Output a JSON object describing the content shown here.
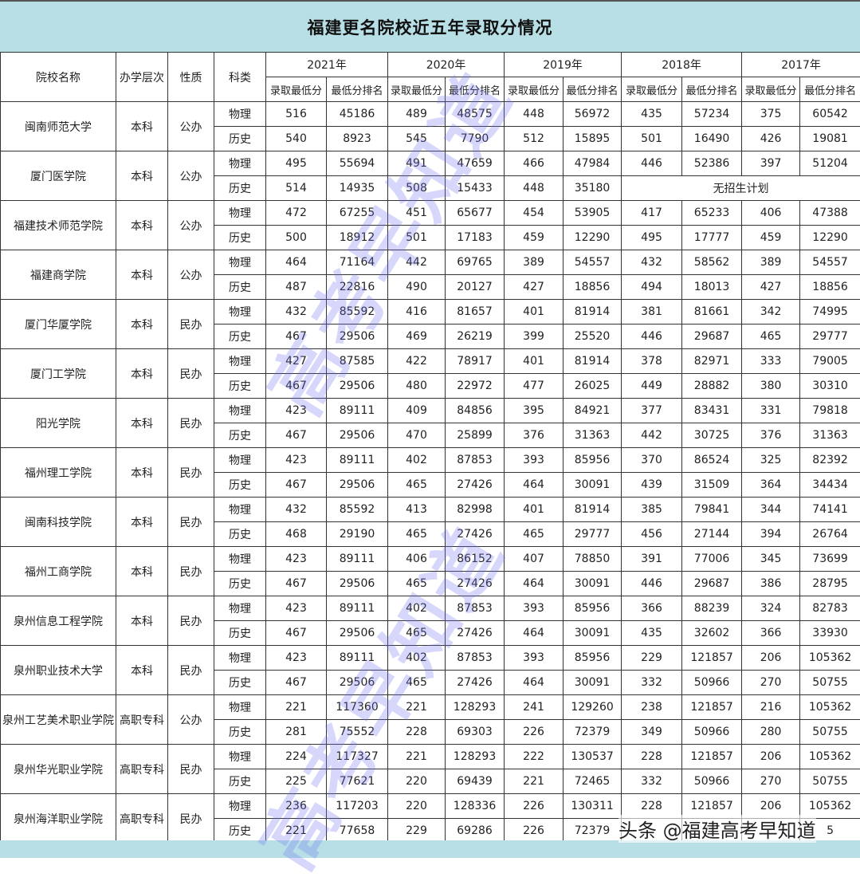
{
  "title": "福建更名院校近五年录取分情况",
  "headers": {
    "school": "院校名称",
    "level": "办学层次",
    "type": "性质",
    "subject": "科类",
    "years": [
      "2021年",
      "2020年",
      "2019年",
      "2018年",
      "2017年"
    ],
    "min_score": "录取最低分",
    "min_rank": "最低分排名"
  },
  "schools": [
    {
      "name": "闽南师范大学",
      "level": "本科",
      "type": "公办",
      "rows": [
        {
          "subject": "物理",
          "values": [
            "516",
            "45186",
            "489",
            "48575",
            "448",
            "56972",
            "435",
            "57234",
            "375",
            "60542"
          ]
        },
        {
          "subject": "历史",
          "values": [
            "540",
            "8923",
            "545",
            "7790",
            "512",
            "15895",
            "501",
            "16490",
            "426",
            "19081"
          ]
        }
      ]
    },
    {
      "name": "厦门医学院",
      "level": "本科",
      "type": "公办",
      "rows": [
        {
          "subject": "物理",
          "values": [
            "495",
            "55694",
            "491",
            "47659",
            "466",
            "47984",
            "446",
            "52386",
            "397",
            "51204"
          ]
        },
        {
          "subject": "历史",
          "values": [
            "514",
            "14935",
            "508",
            "15433",
            "448",
            "35180"
          ],
          "note": "无招生计划"
        }
      ]
    },
    {
      "name": "福建技术师范学院",
      "level": "本科",
      "type": "公办",
      "rows": [
        {
          "subject": "物理",
          "values": [
            "472",
            "67255",
            "451",
            "65677",
            "454",
            "53905",
            "417",
            "65233",
            "406",
            "47388"
          ]
        },
        {
          "subject": "历史",
          "values": [
            "500",
            "18912",
            "501",
            "17183",
            "459",
            "12290",
            "495",
            "17777",
            "459",
            "12290"
          ]
        }
      ]
    },
    {
      "name": "福建商学院",
      "level": "本科",
      "type": "公办",
      "rows": [
        {
          "subject": "物理",
          "values": [
            "464",
            "71164",
            "442",
            "69765",
            "389",
            "54557",
            "432",
            "58562",
            "389",
            "54557"
          ]
        },
        {
          "subject": "历史",
          "values": [
            "487",
            "22816",
            "490",
            "20127",
            "427",
            "18856",
            "494",
            "18013",
            "427",
            "18856"
          ]
        }
      ]
    },
    {
      "name": "厦门华厦学院",
      "level": "本科",
      "type": "民办",
      "rows": [
        {
          "subject": "物理",
          "values": [
            "432",
            "85592",
            "416",
            "81657",
            "401",
            "81914",
            "381",
            "81661",
            "342",
            "74995"
          ]
        },
        {
          "subject": "历史",
          "values": [
            "467",
            "29506",
            "469",
            "26219",
            "399",
            "25520",
            "446",
            "29687",
            "465",
            "29777"
          ]
        }
      ]
    },
    {
      "name": "厦门工学院",
      "level": "本科",
      "type": "民办",
      "rows": [
        {
          "subject": "物理",
          "values": [
            "427",
            "87585",
            "422",
            "78917",
            "401",
            "81914",
            "378",
            "82971",
            "333",
            "79005"
          ]
        },
        {
          "subject": "历史",
          "values": [
            "467",
            "29506",
            "480",
            "22972",
            "477",
            "26025",
            "449",
            "28882",
            "380",
            "30310"
          ]
        }
      ]
    },
    {
      "name": "阳光学院",
      "level": "本科",
      "type": "民办",
      "rows": [
        {
          "subject": "物理",
          "values": [
            "423",
            "89111",
            "409",
            "84856",
            "395",
            "84921",
            "377",
            "83431",
            "331",
            "79818"
          ]
        },
        {
          "subject": "历史",
          "values": [
            "467",
            "29506",
            "470",
            "25899",
            "376",
            "31363",
            "442",
            "30725",
            "376",
            "31363"
          ]
        }
      ]
    },
    {
      "name": "福州理工学院",
      "level": "本科",
      "type": "民办",
      "rows": [
        {
          "subject": "物理",
          "values": [
            "423",
            "89111",
            "402",
            "87853",
            "393",
            "85956",
            "370",
            "86524",
            "325",
            "82392"
          ]
        },
        {
          "subject": "历史",
          "values": [
            "467",
            "29506",
            "465",
            "27426",
            "464",
            "30091",
            "439",
            "31509",
            "364",
            "34434"
          ]
        }
      ]
    },
    {
      "name": "闽南科技学院",
      "level": "本科",
      "type": "民办",
      "rows": [
        {
          "subject": "物理",
          "values": [
            "432",
            "85592",
            "413",
            "82998",
            "401",
            "81914",
            "385",
            "79841",
            "344",
            "74141"
          ]
        },
        {
          "subject": "历史",
          "values": [
            "468",
            "29190",
            "465",
            "27426",
            "465",
            "29777",
            "456",
            "27144",
            "394",
            "26764"
          ]
        }
      ]
    },
    {
      "name": "福州工商学院",
      "level": "本科",
      "type": "民办",
      "rows": [
        {
          "subject": "物理",
          "values": [
            "423",
            "89111",
            "406",
            "86152",
            "407",
            "78850",
            "391",
            "77006",
            "345",
            "73699"
          ]
        },
        {
          "subject": "历史",
          "values": [
            "467",
            "29506",
            "465",
            "27426",
            "464",
            "30091",
            "446",
            "29687",
            "386",
            "28795"
          ]
        }
      ]
    },
    {
      "name": "泉州信息工程学院",
      "level": "本科",
      "type": "民办",
      "rows": [
        {
          "subject": "物理",
          "values": [
            "423",
            "89111",
            "402",
            "87853",
            "393",
            "85956",
            "366",
            "88239",
            "324",
            "82783"
          ]
        },
        {
          "subject": "历史",
          "values": [
            "467",
            "29506",
            "465",
            "27426",
            "464",
            "30091",
            "435",
            "32602",
            "366",
            "33930"
          ]
        }
      ]
    },
    {
      "name": "泉州职业技术大学",
      "level": "本科",
      "type": "民办",
      "rows": [
        {
          "subject": "物理",
          "values": [
            "423",
            "89111",
            "402",
            "87853",
            "393",
            "85956",
            "229",
            "121857",
            "206",
            "105362"
          ]
        },
        {
          "subject": "历史",
          "values": [
            "467",
            "29506",
            "465",
            "27426",
            "464",
            "30091",
            "332",
            "50966",
            "270",
            "50755"
          ]
        }
      ]
    },
    {
      "name": "泉州工艺美术职业学院",
      "level": "高职专科",
      "type": "公办",
      "rows": [
        {
          "subject": "物理",
          "values": [
            "221",
            "117360",
            "221",
            "128293",
            "241",
            "129260",
            "238",
            "121857",
            "216",
            "105362"
          ]
        },
        {
          "subject": "历史",
          "values": [
            "281",
            "75552",
            "228",
            "69303",
            "226",
            "72379",
            "349",
            "50966",
            "280",
            "50755"
          ]
        }
      ]
    },
    {
      "name": "泉州华光职业学院",
      "level": "高职专科",
      "type": "民办",
      "rows": [
        {
          "subject": "物理",
          "values": [
            "224",
            "117327",
            "221",
            "128293",
            "222",
            "130537",
            "228",
            "121857",
            "206",
            "105362"
          ]
        },
        {
          "subject": "历史",
          "values": [
            "225",
            "77621",
            "220",
            "69439",
            "221",
            "72465",
            "332",
            "50966",
            "270",
            "50755"
          ]
        }
      ]
    },
    {
      "name": "泉州海洋职业学院",
      "level": "高职专科",
      "type": "民办",
      "rows": [
        {
          "subject": "物理",
          "values": [
            "236",
            "117203",
            "220",
            "128336",
            "226",
            "130311",
            "228",
            "121857",
            "206",
            "105362"
          ]
        },
        {
          "subject": "历史",
          "values": [
            "221",
            "77658",
            "229",
            "69286",
            "226",
            "72379",
            "",
            "",
            "",
            "5"
          ]
        }
      ]
    }
  ],
  "watermark": "高考早知道",
  "credit": "头条 @福建高考早知道"
}
